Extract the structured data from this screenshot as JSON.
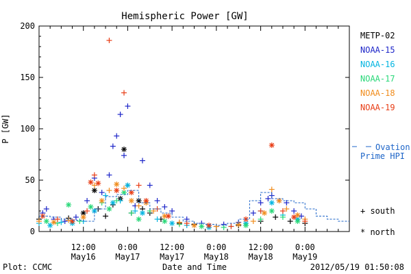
{
  "chart_data": {
    "type": "scatter",
    "title": "Hemispheric Power [GW]",
    "xlabel": "Date and Time",
    "ylabel": "P [GW]",
    "ylim": [
      0,
      200
    ],
    "yticks": [
      0,
      50,
      100,
      150,
      200
    ],
    "xlim_hours": [
      0,
      84
    ],
    "xtick_labels": [
      {
        "time": "12:00",
        "date": "May16"
      },
      {
        "time": "0:00",
        "date": "May17"
      },
      {
        "time": "12:00",
        "date": "May17"
      },
      {
        "time": "0:00",
        "date": "May18"
      },
      {
        "time": "12:00",
        "date": "May18"
      },
      {
        "time": "0:00",
        "date": "May19"
      }
    ],
    "xtick_positions_hours": [
      12,
      24,
      36,
      48,
      60,
      72
    ],
    "grid": false,
    "legend_position": "right",
    "series": [
      {
        "name": "METP-02",
        "color": "#000000",
        "points": [
          [
            0,
            12,
            "s"
          ],
          [
            8,
            13,
            "s"
          ],
          [
            12,
            18,
            "n"
          ],
          [
            15,
            40,
            "n"
          ],
          [
            16,
            22,
            "s"
          ],
          [
            18,
            15,
            "s"
          ],
          [
            20,
            26,
            "s"
          ],
          [
            22,
            32,
            "n"
          ],
          [
            23,
            80,
            "n"
          ],
          [
            24,
            45,
            "s"
          ],
          [
            25,
            18,
            "s"
          ],
          [
            27,
            30,
            "n"
          ],
          [
            28,
            22,
            "s"
          ],
          [
            30,
            18,
            "s"
          ],
          [
            33,
            12,
            "s"
          ],
          [
            38,
            8,
            "s"
          ],
          [
            42,
            7,
            "s"
          ],
          [
            48,
            5,
            "s"
          ],
          [
            54,
            6,
            "s"
          ],
          [
            60,
            10,
            "s"
          ],
          [
            64,
            14,
            "s"
          ],
          [
            68,
            10,
            "s"
          ],
          [
            72,
            8,
            "s"
          ]
        ]
      },
      {
        "name": "NOAA-15",
        "color": "#1c24c8",
        "points": [
          [
            1,
            18,
            "s"
          ],
          [
            2,
            22,
            "s"
          ],
          [
            4,
            12,
            "s"
          ],
          [
            7,
            10,
            "s"
          ],
          [
            10,
            14,
            "s"
          ],
          [
            13,
            30,
            "s"
          ],
          [
            15,
            52,
            "s"
          ],
          [
            17,
            38,
            "s"
          ],
          [
            19,
            55,
            "s"
          ],
          [
            20,
            83,
            "s"
          ],
          [
            21,
            93,
            "s"
          ],
          [
            22,
            114,
            "s"
          ],
          [
            23,
            74,
            "s"
          ],
          [
            24,
            122,
            "s"
          ],
          [
            26,
            25,
            "s"
          ],
          [
            28,
            69,
            "s"
          ],
          [
            30,
            45,
            "s"
          ],
          [
            32,
            30,
            "s"
          ],
          [
            34,
            24,
            "s"
          ],
          [
            36,
            20,
            "s"
          ],
          [
            40,
            12,
            "s"
          ],
          [
            44,
            8,
            "s"
          ],
          [
            50,
            7,
            "s"
          ],
          [
            54,
            9,
            "s"
          ],
          [
            58,
            18,
            "s"
          ],
          [
            60,
            28,
            "s"
          ],
          [
            62,
            32,
            "s"
          ],
          [
            63,
            35,
            "s"
          ],
          [
            65,
            30,
            "s"
          ],
          [
            67,
            28,
            "s"
          ],
          [
            69,
            20,
            "s"
          ],
          [
            71,
            15,
            "s"
          ]
        ]
      },
      {
        "name": "NOAA-16",
        "color": "#00b4e0",
        "points": [
          [
            0,
            8,
            "s"
          ],
          [
            3,
            6,
            "n"
          ],
          [
            6,
            9,
            "s"
          ],
          [
            9,
            8,
            "n"
          ],
          [
            12,
            10,
            "s"
          ],
          [
            15,
            20,
            "n"
          ],
          [
            18,
            35,
            "s"
          ],
          [
            20,
            28,
            "n"
          ],
          [
            22,
            30,
            "s"
          ],
          [
            24,
            45,
            "n"
          ],
          [
            26,
            20,
            "s"
          ],
          [
            28,
            18,
            "n"
          ],
          [
            32,
            12,
            "s"
          ],
          [
            36,
            8,
            "n"
          ],
          [
            40,
            6,
            "s"
          ],
          [
            46,
            4,
            "n"
          ],
          [
            52,
            5,
            "s"
          ],
          [
            56,
            8,
            "n"
          ],
          [
            60,
            20,
            "s"
          ],
          [
            63,
            28,
            "n"
          ],
          [
            66,
            16,
            "s"
          ],
          [
            70,
            12,
            "n"
          ]
        ]
      },
      {
        "name": "NOAA-17",
        "color": "#28d878",
        "points": [
          [
            2,
            10,
            "n"
          ],
          [
            5,
            8,
            "s"
          ],
          [
            8,
            26,
            "n"
          ],
          [
            11,
            10,
            "s"
          ],
          [
            14,
            24,
            "n"
          ],
          [
            17,
            28,
            "s"
          ],
          [
            19,
            22,
            "n"
          ],
          [
            21,
            30,
            "s"
          ],
          [
            23,
            38,
            "n"
          ],
          [
            25,
            18,
            "s"
          ],
          [
            27,
            12,
            "n"
          ],
          [
            30,
            20,
            "s"
          ],
          [
            34,
            10,
            "n"
          ],
          [
            38,
            7,
            "s"
          ],
          [
            44,
            5,
            "n"
          ],
          [
            50,
            4,
            "s"
          ],
          [
            56,
            6,
            "n"
          ],
          [
            60,
            12,
            "s"
          ],
          [
            63,
            20,
            "n"
          ],
          [
            66,
            14,
            "s"
          ],
          [
            70,
            10,
            "n"
          ]
        ]
      },
      {
        "name": "NOAA-18",
        "color": "#f08c1c",
        "points": [
          [
            0,
            10,
            "s"
          ],
          [
            4,
            9,
            "n"
          ],
          [
            8,
            11,
            "s"
          ],
          [
            12,
            14,
            "n"
          ],
          [
            15,
            45,
            "s"
          ],
          [
            17,
            30,
            "n"
          ],
          [
            19,
            40,
            "s"
          ],
          [
            21,
            46,
            "n"
          ],
          [
            23,
            42,
            "s"
          ],
          [
            25,
            30,
            "n"
          ],
          [
            27,
            25,
            "s"
          ],
          [
            29,
            28,
            "n"
          ],
          [
            31,
            20,
            "s"
          ],
          [
            34,
            15,
            "n"
          ],
          [
            38,
            9,
            "s"
          ],
          [
            42,
            6,
            "n"
          ],
          [
            48,
            5,
            "s"
          ],
          [
            54,
            7,
            "n"
          ],
          [
            58,
            10,
            "s"
          ],
          [
            61,
            18,
            "n"
          ],
          [
            63,
            41,
            "s"
          ],
          [
            65,
            30,
            "n"
          ],
          [
            67,
            22,
            "s"
          ],
          [
            70,
            16,
            "n"
          ],
          [
            72,
            12,
            "s"
          ]
        ]
      },
      {
        "name": "NOAA-19",
        "color": "#e83c14",
        "points": [
          [
            1,
            15,
            "n"
          ],
          [
            5,
            12,
            "s"
          ],
          [
            9,
            10,
            "n"
          ],
          [
            13,
            20,
            "s"
          ],
          [
            14,
            48,
            "n"
          ],
          [
            15,
            55,
            "s"
          ],
          [
            16,
            47,
            "n"
          ],
          [
            19,
            186,
            "s"
          ],
          [
            21,
            40,
            "n"
          ],
          [
            23,
            135,
            "s"
          ],
          [
            25,
            38,
            "n"
          ],
          [
            27,
            45,
            "s"
          ],
          [
            29,
            30,
            "n"
          ],
          [
            32,
            22,
            "s"
          ],
          [
            35,
            15,
            "n"
          ],
          [
            40,
            8,
            "s"
          ],
          [
            46,
            6,
            "n"
          ],
          [
            52,
            5,
            "s"
          ],
          [
            56,
            12,
            "n"
          ],
          [
            60,
            20,
            "s"
          ],
          [
            63,
            84,
            "n"
          ],
          [
            66,
            20,
            "s"
          ],
          [
            69,
            14,
            "n"
          ],
          [
            72,
            10,
            "s"
          ]
        ]
      },
      {
        "name": "Ovation Prime HPI",
        "color": "#1c64c8",
        "type": "step",
        "x_hours": [
          0,
          3,
          6,
          9,
          12,
          15,
          18,
          21,
          24,
          27,
          30,
          33,
          36,
          39,
          42,
          45,
          48,
          51,
          54,
          57,
          60,
          63,
          66,
          69,
          72,
          75,
          78,
          81,
          84
        ],
        "values": [
          15,
          14,
          12,
          11,
          10,
          22,
          34,
          36,
          40,
          28,
          22,
          18,
          14,
          10,
          8,
          7,
          6,
          8,
          12,
          30,
          38,
          32,
          30,
          28,
          22,
          15,
          12,
          10,
          10
        ]
      }
    ],
    "symbol_legend": [
      {
        "symbol": "+",
        "label": "south"
      },
      {
        "symbol": "*",
        "label": "north"
      }
    ]
  },
  "footer": {
    "plot_source": "Plot: CCMC",
    "timestamp": "2012/05/19 01:50:08"
  }
}
